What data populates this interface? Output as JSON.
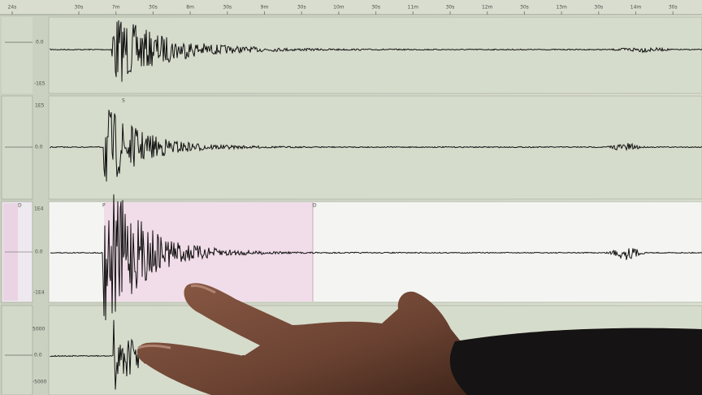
{
  "time_axis": {
    "labels": [
      "24s",
      "30s",
      "7m",
      "30s",
      "8m",
      "30s",
      "9m",
      "30s",
      "10m",
      "30s",
      "11m",
      "30s",
      "12m",
      "30s",
      "13m",
      "30s",
      "14m",
      "30s"
    ]
  },
  "panels": [
    {
      "scale_labels": [
        "0.0",
        "-1E5"
      ]
    },
    {
      "scale_labels": [
        "1E5",
        "0.0"
      ],
      "phase_markers": [
        "S"
      ]
    },
    {
      "scale_labels": [
        "1E4",
        "0.0",
        "-1E4"
      ],
      "phase_markers": [
        "P",
        "D",
        "D"
      ]
    },
    {
      "scale_labels": [
        "5000",
        "0.0",
        "-5000"
      ]
    }
  ]
}
